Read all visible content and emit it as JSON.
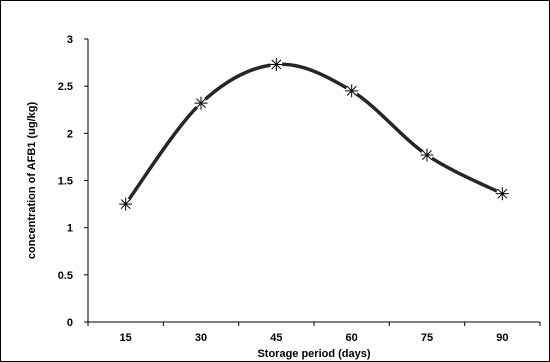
{
  "chart_data": {
    "type": "line",
    "title": "",
    "xlabel": "Storage period (days)",
    "ylabel": "concentration of AFB1 (ug/kg)",
    "categories": [
      "15",
      "30",
      "45",
      "60",
      "75",
      "90"
    ],
    "series": [
      {
        "values": [
          1.25,
          2.32,
          2.73,
          2.45,
          1.77,
          1.36
        ],
        "color": "#262626",
        "marker": "asterisk",
        "smooth": true
      }
    ],
    "yticks": [
      "0",
      "0.5",
      "1",
      "1.5",
      "2",
      "2.5",
      "3"
    ],
    "ylim": [
      0,
      3
    ],
    "grid": false,
    "legend": "none"
  }
}
